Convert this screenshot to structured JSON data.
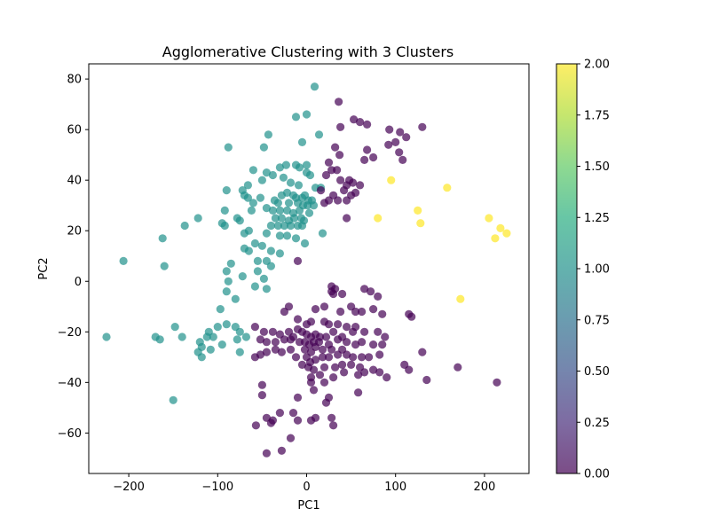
{
  "chart_data": {
    "type": "scatter",
    "title": "Agglomerative Clustering with 3 Clusters",
    "xlabel": "PC1",
    "ylabel": "PC2",
    "xlim": [
      -245,
      250
    ],
    "ylim": [
      -76,
      86
    ],
    "xticks": [
      -200,
      -100,
      0,
      100,
      200
    ],
    "yticks": [
      -60,
      -40,
      -20,
      0,
      20,
      40,
      60,
      80
    ],
    "xtick_labels": [
      "−200",
      "−100",
      "0",
      "100",
      "200"
    ],
    "ytick_labels": [
      "−60",
      "−40",
      "−20",
      "0",
      "20",
      "40",
      "60",
      "80"
    ],
    "grid": false,
    "colorbar": {
      "range": [
        0,
        2
      ],
      "ticks": [
        0.0,
        0.25,
        0.5,
        0.75,
        1.0,
        1.25,
        1.5,
        1.75,
        2.0
      ],
      "tick_labels": [
        "0.00",
        "0.25",
        "0.50",
        "0.75",
        "1.00",
        "1.25",
        "1.50",
        "1.75",
        "2.00"
      ],
      "colormap": "viridis"
    },
    "point_alpha": 0.7,
    "series": [
      {
        "cluster": 1,
        "color": "#21918c",
        "points": [
          [
            9,
            77
          ],
          [
            0,
            66
          ],
          [
            -12,
            65
          ],
          [
            14,
            58
          ],
          [
            -43,
            58
          ],
          [
            -5,
            55
          ],
          [
            -88,
            53
          ],
          [
            -48,
            53
          ],
          [
            -23,
            46
          ],
          [
            -12,
            46
          ],
          [
            0,
            46
          ],
          [
            -8,
            45
          ],
          [
            -30,
            45
          ],
          [
            -45,
            43
          ],
          [
            -60,
            44
          ],
          [
            -26,
            41
          ],
          [
            -38,
            42
          ],
          [
            -50,
            40
          ],
          [
            0,
            43
          ],
          [
            4,
            42
          ],
          [
            -66,
            38
          ],
          [
            -72,
            36
          ],
          [
            -18,
            39
          ],
          [
            -9,
            38
          ],
          [
            10,
            37
          ],
          [
            16,
            37
          ],
          [
            -52,
            33
          ],
          [
            -36,
            32
          ],
          [
            -28,
            34
          ],
          [
            -22,
            35
          ],
          [
            -15,
            34
          ],
          [
            -12,
            33
          ],
          [
            -5,
            33
          ],
          [
            -2,
            34
          ],
          [
            2,
            32
          ],
          [
            6,
            32
          ],
          [
            -90,
            36
          ],
          [
            -32,
            31
          ],
          [
            -20,
            31
          ],
          [
            -10,
            31
          ],
          [
            -4,
            30
          ],
          [
            1,
            30
          ],
          [
            8,
            30
          ],
          [
            -70,
            34
          ],
          [
            -66,
            33
          ],
          [
            -60,
            31
          ],
          [
            -62,
            28
          ],
          [
            -45,
            29
          ],
          [
            -38,
            28
          ],
          [
            -30,
            28
          ],
          [
            -22,
            28
          ],
          [
            -15,
            27
          ],
          [
            -8,
            28
          ],
          [
            3,
            27
          ],
          [
            -92,
            28
          ],
          [
            -35,
            25
          ],
          [
            -28,
            25
          ],
          [
            -20,
            24
          ],
          [
            -14,
            25
          ],
          [
            -6,
            25
          ],
          [
            -3,
            24
          ],
          [
            -78,
            25
          ],
          [
            -75,
            24
          ],
          [
            -95,
            23
          ],
          [
            -92,
            22
          ],
          [
            -40,
            22
          ],
          [
            -32,
            22
          ],
          [
            -25,
            22
          ],
          [
            -18,
            22
          ],
          [
            -10,
            22
          ],
          [
            -5,
            22
          ],
          [
            -122,
            25
          ],
          [
            -137,
            22
          ],
          [
            -65,
            20
          ],
          [
            -70,
            19
          ],
          [
            -45,
            19
          ],
          [
            -30,
            18
          ],
          [
            -22,
            18
          ],
          [
            -12,
            17
          ],
          [
            -2,
            15
          ],
          [
            18,
            19
          ],
          [
            -162,
            17
          ],
          [
            -58,
            15
          ],
          [
            -50,
            14
          ],
          [
            -70,
            13
          ],
          [
            -65,
            12
          ],
          [
            -40,
            12
          ],
          [
            -30,
            11
          ],
          [
            -55,
            8
          ],
          [
            -45,
            8
          ],
          [
            -40,
            6
          ],
          [
            -85,
            7
          ],
          [
            -206,
            8
          ],
          [
            -160,
            6
          ],
          [
            -90,
            4
          ],
          [
            -72,
            2
          ],
          [
            -55,
            4
          ],
          [
            -48,
            1
          ],
          [
            -88,
            0
          ],
          [
            -58,
            -2
          ],
          [
            -45,
            -3
          ],
          [
            -90,
            -4
          ],
          [
            -80,
            -7
          ],
          [
            -97,
            -11
          ],
          [
            -110,
            -20
          ],
          [
            -105,
            -22
          ],
          [
            -90,
            -17
          ],
          [
            -100,
            -18
          ],
          [
            -80,
            -18
          ],
          [
            -75,
            -20
          ],
          [
            -112,
            -22
          ],
          [
            -120,
            -24
          ],
          [
            -68,
            -22
          ],
          [
            -78,
            -23
          ],
          [
            -140,
            -22
          ],
          [
            -148,
            -18
          ],
          [
            -170,
            -22
          ],
          [
            -165,
            -23
          ],
          [
            -225,
            -22
          ],
          [
            -118,
            -26
          ],
          [
            -108,
            -27
          ],
          [
            -95,
            -25
          ],
          [
            -122,
            -28
          ],
          [
            -75,
            -28
          ],
          [
            -118,
            -30
          ],
          [
            -150,
            -47
          ]
        ]
      },
      {
        "cluster": 0,
        "color": "#440154",
        "points": [
          [
            36,
            71
          ],
          [
            53,
            64
          ],
          [
            60,
            63
          ],
          [
            68,
            62
          ],
          [
            93,
            60
          ],
          [
            130,
            61
          ],
          [
            38,
            61
          ],
          [
            105,
            59
          ],
          [
            112,
            57
          ],
          [
            100,
            55
          ],
          [
            92,
            54
          ],
          [
            32,
            53
          ],
          [
            68,
            52
          ],
          [
            37,
            50
          ],
          [
            104,
            51
          ],
          [
            65,
            48
          ],
          [
            75,
            49
          ],
          [
            108,
            48
          ],
          [
            25,
            47
          ],
          [
            28,
            44
          ],
          [
            34,
            44
          ],
          [
            22,
            42
          ],
          [
            38,
            40
          ],
          [
            45,
            38
          ],
          [
            48,
            40
          ],
          [
            52,
            39
          ],
          [
            60,
            38
          ],
          [
            42,
            36
          ],
          [
            50,
            34
          ],
          [
            55,
            35
          ],
          [
            30,
            34
          ],
          [
            35,
            32
          ],
          [
            25,
            32
          ],
          [
            45,
            32
          ],
          [
            20,
            31
          ],
          [
            16,
            36
          ],
          [
            45,
            25
          ],
          [
            -10,
            8
          ],
          [
            28,
            -2
          ],
          [
            32,
            -3
          ],
          [
            28,
            -4
          ],
          [
            30,
            -5
          ],
          [
            40,
            -5
          ],
          [
            65,
            -3
          ],
          [
            72,
            -4
          ],
          [
            80,
            -6
          ],
          [
            -20,
            -10
          ],
          [
            -25,
            -12
          ],
          [
            10,
            -11
          ],
          [
            20,
            -10
          ],
          [
            38,
            -12
          ],
          [
            50,
            -10
          ],
          [
            55,
            -12
          ],
          [
            62,
            -12
          ],
          [
            75,
            -11
          ],
          [
            85,
            -13
          ],
          [
            115,
            -13
          ],
          [
            118,
            -14
          ],
          [
            -10,
            -15
          ],
          [
            0,
            -17
          ],
          [
            5,
            -16
          ],
          [
            20,
            -16
          ],
          [
            25,
            -17
          ],
          [
            35,
            -17
          ],
          [
            45,
            -18
          ],
          [
            55,
            -18
          ],
          [
            -58,
            -18
          ],
          [
            -48,
            -20
          ],
          [
            -38,
            -20
          ],
          [
            -30,
            -21
          ],
          [
            -20,
            -20
          ],
          [
            -15,
            -22
          ],
          [
            -10,
            -19
          ],
          [
            -5,
            -20
          ],
          [
            0,
            -21
          ],
          [
            5,
            -22
          ],
          [
            10,
            -21
          ],
          [
            15,
            -22
          ],
          [
            22,
            -22
          ],
          [
            30,
            -20
          ],
          [
            40,
            -22
          ],
          [
            52,
            -20
          ],
          [
            65,
            -20
          ],
          [
            80,
            -20
          ],
          [
            88,
            -22
          ],
          [
            -52,
            -23
          ],
          [
            -45,
            -24
          ],
          [
            -35,
            -24
          ],
          [
            -25,
            -23
          ],
          [
            -18,
            -23
          ],
          [
            -8,
            -24
          ],
          [
            -2,
            -24
          ],
          [
            3,
            -25
          ],
          [
            8,
            -24
          ],
          [
            14,
            -24
          ],
          [
            25,
            -25
          ],
          [
            35,
            -23
          ],
          [
            45,
            -24
          ],
          [
            55,
            -25
          ],
          [
            62,
            -24
          ],
          [
            75,
            -25
          ],
          [
            85,
            -25
          ],
          [
            -2,
            -27
          ],
          [
            5,
            -28
          ],
          [
            10,
            -26
          ],
          [
            18,
            -27
          ],
          [
            28,
            -27
          ],
          [
            40,
            -27
          ],
          [
            -52,
            -29
          ],
          [
            -58,
            -30
          ],
          [
            -45,
            -28
          ],
          [
            -35,
            -27
          ],
          [
            -28,
            -28
          ],
          [
            -18,
            -27
          ],
          [
            -12,
            -30
          ],
          [
            0,
            -30
          ],
          [
            4,
            -32
          ],
          [
            10,
            -31
          ],
          [
            18,
            -30
          ],
          [
            25,
            -30
          ],
          [
            35,
            -29
          ],
          [
            45,
            -29
          ],
          [
            52,
            -30
          ],
          [
            62,
            -30
          ],
          [
            70,
            -30
          ],
          [
            82,
            -29
          ],
          [
            130,
            -28
          ],
          [
            -5,
            -33
          ],
          [
            2,
            -34
          ],
          [
            8,
            -35
          ],
          [
            20,
            -34
          ],
          [
            32,
            -34
          ],
          [
            40,
            -33
          ],
          [
            50,
            -33
          ],
          [
            60,
            -34
          ],
          [
            65,
            -36
          ],
          [
            75,
            -35
          ],
          [
            82,
            -36
          ],
          [
            110,
            -33
          ],
          [
            115,
            -35
          ],
          [
            170,
            -34
          ],
          [
            5,
            -38
          ],
          [
            15,
            -37
          ],
          [
            30,
            -38
          ],
          [
            42,
            -36
          ],
          [
            58,
            -37
          ],
          [
            90,
            -38
          ],
          [
            135,
            -39
          ],
          [
            214,
            -40
          ],
          [
            -50,
            -41
          ],
          [
            5,
            -40
          ],
          [
            20,
            -40
          ],
          [
            8,
            -43
          ],
          [
            58,
            -44
          ],
          [
            -50,
            -45
          ],
          [
            25,
            -46
          ],
          [
            -10,
            -46
          ],
          [
            22,
            -48
          ],
          [
            -15,
            -52
          ],
          [
            10,
            -54
          ],
          [
            -45,
            -54
          ],
          [
            -38,
            -55
          ],
          [
            -30,
            -52
          ],
          [
            -10,
            -55
          ],
          [
            5,
            -55
          ],
          [
            28,
            -54
          ],
          [
            -57,
            -57
          ],
          [
            -40,
            -56
          ],
          [
            30,
            -57
          ],
          [
            -18,
            -62
          ],
          [
            -45,
            -68
          ],
          [
            -28,
            -67
          ]
        ]
      },
      {
        "cluster": 2,
        "color": "#fde725",
        "points": [
          [
            158,
            37
          ],
          [
            95,
            40
          ],
          [
            125,
            28
          ],
          [
            205,
            25
          ],
          [
            80,
            25
          ],
          [
            128,
            23
          ],
          [
            218,
            21
          ],
          [
            225,
            19
          ],
          [
            212,
            17
          ],
          [
            173,
            -7
          ]
        ]
      }
    ]
  }
}
